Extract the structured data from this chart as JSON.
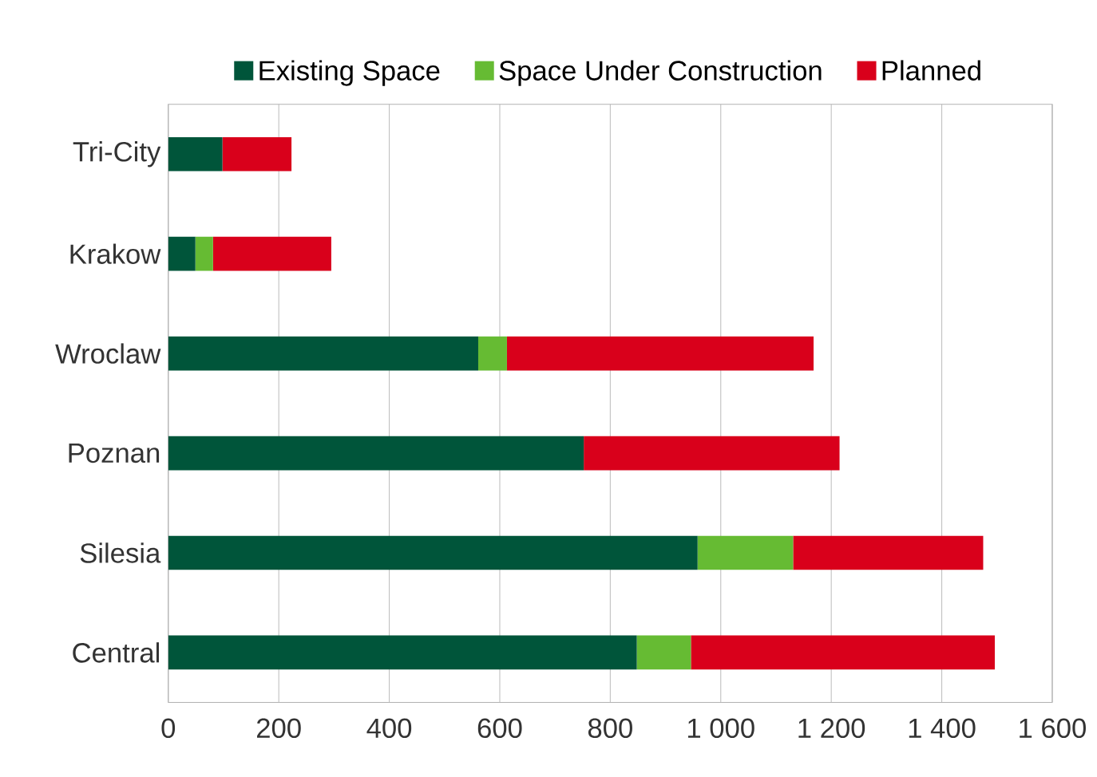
{
  "chart_data": {
    "type": "bar",
    "orientation": "horizontal",
    "stacked": true,
    "categories": [
      "Tri-City",
      "Krakow",
      "Wroclaw",
      "Poznan",
      "Silesia",
      "Central"
    ],
    "series": [
      {
        "name": "Existing Space",
        "color": "#00553a",
        "values": [
          98,
          49,
          561,
          752,
          958,
          848
        ]
      },
      {
        "name": "Space Under Construction",
        "color": "#66bb33",
        "values": [
          0,
          32,
          52,
          0,
          173,
          98
        ]
      },
      {
        "name": "Planned",
        "color": "#d9001b",
        "values": [
          125,
          214,
          555,
          463,
          344,
          550
        ]
      }
    ],
    "xlim": [
      0,
      1600
    ],
    "xticks": [
      0,
      200,
      400,
      600,
      800,
      {
        "value": 1000,
        "label": "1 000"
      },
      {
        "value": 1200,
        "label": "1 200"
      },
      {
        "value": 1400,
        "label": "1 400"
      },
      {
        "value": 1600,
        "label": "1 600"
      }
    ],
    "grid": "x",
    "legend": "top"
  }
}
